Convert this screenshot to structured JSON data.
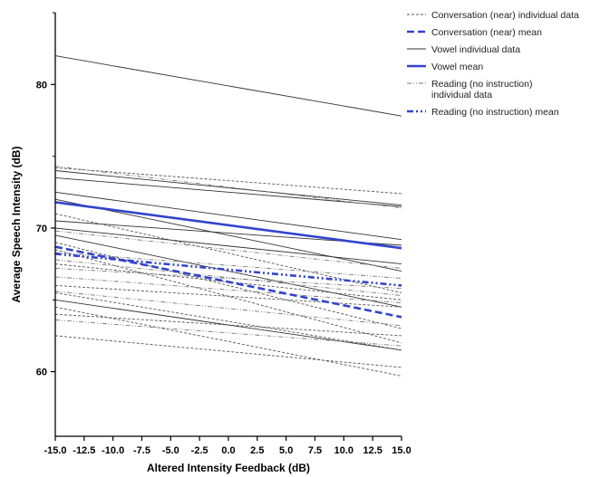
{
  "chart_data": {
    "type": "line",
    "title": "",
    "xlabel": "Altered Intensity Feedback (dB)",
    "ylabel": "Average Speech Intensity (dB)",
    "xlim": [
      -15,
      15
    ],
    "ylim": [
      55.5,
      85
    ],
    "x_ticks": [
      "-15.0",
      "-12.5",
      "-10.0",
      "-7.5",
      "-5.0",
      "-2.5",
      "0.0",
      "2.5",
      "5.0",
      "7.5",
      "10.0",
      "12.5",
      "15.0"
    ],
    "y_ticks": [
      "60",
      "70",
      "80"
    ],
    "grid": false,
    "legend_position": "top-right",
    "legend": [
      {
        "style": "conv_ind",
        "lines": [
          "Conversation (near) individual data"
        ]
      },
      {
        "style": "conv_mean",
        "lines": [
          "Conversation (near) mean"
        ]
      },
      {
        "style": "vowel_ind",
        "lines": [
          "Vowel individual data"
        ]
      },
      {
        "style": "vowel_mean",
        "lines": [
          "Vowel mean"
        ]
      },
      {
        "style": "read_ind",
        "lines": [
          "Reading (no instruction)",
          "individual data"
        ]
      },
      {
        "style": "read_mean",
        "lines": [
          "Reading (no instruction) mean"
        ]
      }
    ],
    "styles": {
      "conv_ind": {
        "color": "#555555",
        "width": 0.9,
        "dash": "3,2"
      },
      "conv_mean": {
        "color": "#3344cc",
        "width": 2.6,
        "dash": "8,4"
      },
      "vowel_ind": {
        "color": "#333333",
        "width": 0.9,
        "dash": ""
      },
      "vowel_mean": {
        "color": "#3344cc",
        "width": 2.6,
        "dash": ""
      },
      "read_ind": {
        "color": "#777777",
        "width": 0.9,
        "dash": "5,2,1,2,1,2"
      },
      "read_mean": {
        "color": "#3344cc",
        "width": 2.6,
        "dash": "7,3,2,3,2,3"
      }
    },
    "series": [
      {
        "style": "vowel_ind",
        "x": [
          -15,
          15
        ],
        "y": [
          82.0,
          77.8
        ]
      },
      {
        "style": "vowel_ind",
        "x": [
          -15,
          15
        ],
        "y": [
          74.0,
          71.6
        ]
      },
      {
        "style": "vowel_ind",
        "x": [
          -15,
          15
        ],
        "y": [
          73.5,
          71.5
        ]
      },
      {
        "style": "vowel_ind",
        "x": [
          -15,
          15
        ],
        "y": [
          72.5,
          69.2
        ]
      },
      {
        "style": "vowel_ind",
        "x": [
          -15,
          15
        ],
        "y": [
          72.0,
          67.0
        ]
      },
      {
        "style": "vowel_ind",
        "x": [
          -15,
          15
        ],
        "y": [
          70.5,
          68.8
        ]
      },
      {
        "style": "vowel_ind",
        "x": [
          -15,
          15
        ],
        "y": [
          70.0,
          67.5
        ]
      },
      {
        "style": "vowel_ind",
        "x": [
          -15,
          15
        ],
        "y": [
          69.5,
          64.5
        ]
      },
      {
        "style": "vowel_ind",
        "x": [
          -15,
          15
        ],
        "y": [
          65.0,
          61.5
        ]
      },
      {
        "style": "vowel_mean",
        "x": [
          -15,
          15
        ],
        "y": [
          71.8,
          68.6
        ]
      },
      {
        "style": "conv_ind",
        "x": [
          -15,
          15
        ],
        "y": [
          74.2,
          72.4
        ]
      },
      {
        "style": "conv_ind",
        "x": [
          -15,
          15
        ],
        "y": [
          71.0,
          65.5
        ]
      },
      {
        "style": "conv_ind",
        "x": [
          -15,
          15
        ],
        "y": [
          69.0,
          63.0
        ]
      },
      {
        "style": "conv_ind",
        "x": [
          -15,
          15
        ],
        "y": [
          68.5,
          62.0
        ]
      },
      {
        "style": "conv_ind",
        "x": [
          -15,
          15
        ],
        "y": [
          67.5,
          65.0
        ]
      },
      {
        "style": "conv_ind",
        "x": [
          -15,
          15
        ],
        "y": [
          66.0,
          64.5
        ]
      },
      {
        "style": "conv_ind",
        "x": [
          -15,
          15
        ],
        "y": [
          65.5,
          61.5
        ]
      },
      {
        "style": "conv_ind",
        "x": [
          -15,
          15
        ],
        "y": [
          64.5,
          59.7
        ]
      },
      {
        "style": "conv_ind",
        "x": [
          -15,
          15
        ],
        "y": [
          64.0,
          62.5
        ]
      },
      {
        "style": "conv_ind",
        "x": [
          -15,
          15
        ],
        "y": [
          62.5,
          60.3
        ]
      },
      {
        "style": "conv_mean",
        "x": [
          -15,
          15
        ],
        "y": [
          68.7,
          63.8
        ]
      },
      {
        "style": "read_ind",
        "x": [
          -15,
          15
        ],
        "y": [
          74.3,
          71.4
        ]
      },
      {
        "style": "read_ind",
        "x": [
          -15,
          15
        ],
        "y": [
          69.8,
          67.2
        ]
      },
      {
        "style": "read_ind",
        "x": [
          -15,
          15
        ],
        "y": [
          68.3,
          66.5
        ]
      },
      {
        "style": "read_ind",
        "x": [
          -15,
          15
        ],
        "y": [
          67.8,
          65.3
        ]
      },
      {
        "style": "read_ind",
        "x": [
          -15,
          15
        ],
        "y": [
          67.2,
          65.8
        ]
      },
      {
        "style": "read_ind",
        "x": [
          -15,
          15
        ],
        "y": [
          66.6,
          64.8
        ]
      },
      {
        "style": "read_ind",
        "x": [
          -15,
          15
        ],
        "y": [
          65.6,
          63.2
        ]
      },
      {
        "style": "read_ind",
        "x": [
          -15,
          15
        ],
        "y": [
          63.6,
          61.8
        ]
      },
      {
        "style": "read_mean",
        "x": [
          -15,
          15
        ],
        "y": [
          68.2,
          66.0
        ]
      }
    ]
  }
}
